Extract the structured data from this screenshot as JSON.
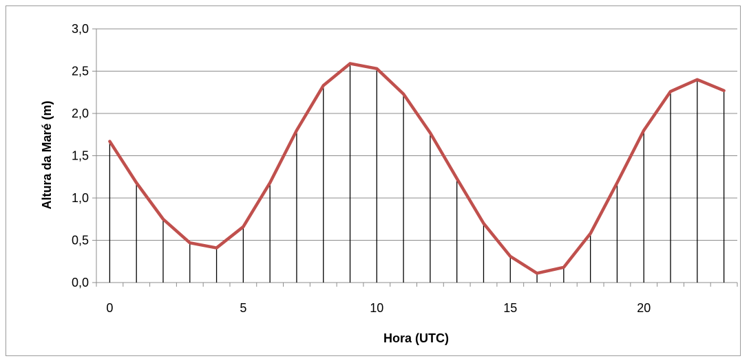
{
  "chart_data": {
    "type": "line",
    "xlabel": "Hora (UTC)",
    "ylabel": "Altura da Maré (m)",
    "xlim": [
      -0.5,
      23.5
    ],
    "ylim": [
      0,
      3
    ],
    "x_ticks": [
      0,
      5,
      10,
      15,
      20
    ],
    "x_tick_labels": [
      "0",
      "5",
      "10",
      "15",
      "20"
    ],
    "y_ticks": [
      0,
      0.5,
      1,
      1.5,
      2,
      2.5,
      3
    ],
    "y_tick_labels": [
      "0,0",
      "0,5",
      "1,0",
      "1,5",
      "2,0",
      "2,5",
      "3,0"
    ],
    "grid": true,
    "drop_lines": true,
    "series": [
      {
        "x": [
          0,
          1,
          2,
          3,
          4,
          5,
          6,
          7,
          8,
          9,
          10,
          11,
          12,
          13,
          14,
          15,
          16,
          17,
          18,
          19,
          20,
          21,
          22,
          23
        ],
        "values": [
          1.67,
          1.18,
          0.75,
          0.47,
          0.41,
          0.66,
          1.18,
          1.8,
          2.33,
          2.59,
          2.53,
          2.23,
          1.77,
          1.23,
          0.7,
          0.31,
          0.11,
          0.18,
          0.58,
          1.18,
          1.8,
          2.26,
          2.4,
          2.27
        ],
        "color": "#c0504d"
      }
    ],
    "colors": {
      "line": "#c0504d",
      "drop_line": "#000000",
      "grid": "#8c8c8c",
      "axis": "#8c8c8c"
    }
  }
}
